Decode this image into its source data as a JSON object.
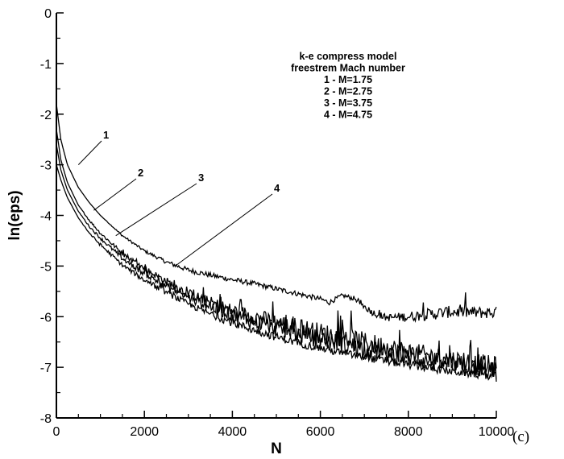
{
  "chart_data": {
    "type": "line",
    "xlabel": "N",
    "ylabel": "ln(eps)",
    "xlim": [
      0,
      10000
    ],
    "ylim": [
      -8,
      0
    ],
    "x_ticks": [
      0,
      2000,
      4000,
      6000,
      8000,
      10000
    ],
    "x_tick_labels": [
      "0",
      "2000",
      "4000",
      "6000",
      "8000",
      "10000"
    ],
    "y_ticks": [
      0,
      -1,
      -2,
      -3,
      -4,
      -5,
      -6,
      -7,
      -8
    ],
    "y_tick_labels": [
      "0",
      "-1",
      "-2",
      "-3",
      "-4",
      "-5",
      "-6",
      "-7",
      "-8"
    ],
    "grid": false,
    "legend_lines": [
      "k-e compress model",
      "freestrem Mach number",
      "1 - M=1.75",
      "2 - M=2.75",
      "3 - M=3.75",
      "4 - M=4.75"
    ],
    "panel_label": "(c)",
    "series": [
      {
        "label": "1",
        "x": [
          0,
          100,
          250,
          500,
          750,
          1000,
          1500,
          2000,
          2500,
          3000,
          3500,
          4000,
          4500,
          5000,
          5500,
          6000,
          6200,
          6500,
          6800,
          7000,
          7200,
          7500,
          8000,
          8500,
          9000,
          9500,
          10000
        ],
        "y": [
          -1.8,
          -2.5,
          -3.0,
          -3.45,
          -3.75,
          -4.0,
          -4.4,
          -4.7,
          -4.92,
          -5.08,
          -5.18,
          -5.27,
          -5.35,
          -5.45,
          -5.55,
          -5.65,
          -5.72,
          -5.58,
          -5.65,
          -5.8,
          -5.92,
          -6.02,
          -6.0,
          -5.95,
          -5.9,
          -5.92,
          -5.92
        ],
        "noise": [
          0,
          0,
          0,
          0,
          0,
          0,
          0.02,
          0.03,
          0.04,
          0.05,
          0.05,
          0.05,
          0.05,
          0.05,
          0.05,
          0.05,
          0.05,
          0.04,
          0.05,
          0.06,
          0.07,
          0.07,
          0.1,
          0.12,
          0.12,
          0.12,
          0.12
        ]
      },
      {
        "label": "2",
        "x": [
          0,
          100,
          250,
          500,
          750,
          1000,
          1500,
          2000,
          2500,
          3000,
          3500,
          4000,
          4500,
          5000,
          5500,
          6000,
          6500,
          7000,
          7500,
          8000,
          8500,
          9000,
          9500,
          10000
        ],
        "y": [
          -2.3,
          -2.9,
          -3.35,
          -3.8,
          -4.1,
          -4.35,
          -4.75,
          -5.05,
          -5.3,
          -5.55,
          -5.72,
          -5.88,
          -6.0,
          -6.12,
          -6.22,
          -6.32,
          -6.4,
          -6.5,
          -6.6,
          -6.7,
          -6.78,
          -6.85,
          -6.92,
          -7.0
        ],
        "noise": [
          0,
          0,
          0,
          0,
          0.02,
          0.03,
          0.05,
          0.06,
          0.08,
          0.1,
          0.12,
          0.14,
          0.16,
          0.18,
          0.2,
          0.2,
          0.2,
          0.2,
          0.2,
          0.2,
          0.2,
          0.2,
          0.2,
          0.22
        ]
      },
      {
        "label": "3",
        "x": [
          0,
          100,
          250,
          500,
          750,
          1000,
          1500,
          2000,
          2500,
          3000,
          3500,
          4000,
          4500,
          5000,
          5500,
          6000,
          6500,
          7000,
          7500,
          8000,
          8500,
          9000,
          9500,
          10000
        ],
        "y": [
          -2.6,
          -3.1,
          -3.5,
          -3.92,
          -4.22,
          -4.45,
          -4.85,
          -5.15,
          -5.4,
          -5.62,
          -5.8,
          -5.96,
          -6.1,
          -6.22,
          -6.34,
          -6.44,
          -6.54,
          -6.62,
          -6.72,
          -6.8,
          -6.88,
          -6.95,
          -7.02,
          -7.1
        ],
        "noise": [
          0,
          0,
          0,
          0,
          0.02,
          0.03,
          0.05,
          0.06,
          0.08,
          0.1,
          0.12,
          0.14,
          0.16,
          0.17,
          0.18,
          0.18,
          0.18,
          0.18,
          0.18,
          0.18,
          0.18,
          0.18,
          0.18,
          0.2
        ]
      },
      {
        "label": "4",
        "x": [
          0,
          100,
          250,
          500,
          750,
          1000,
          1500,
          2000,
          2500,
          3000,
          3500,
          4000,
          4500,
          5000,
          5500,
          6000,
          6500,
          7000,
          7500,
          8000,
          8500,
          9000,
          9500,
          10000
        ],
        "y": [
          -3.0,
          -3.3,
          -3.65,
          -4.05,
          -4.35,
          -4.58,
          -4.98,
          -5.28,
          -5.52,
          -5.75,
          -5.95,
          -6.12,
          -6.27,
          -6.4,
          -6.52,
          -6.62,
          -6.72,
          -6.8,
          -6.88,
          -6.95,
          -7.02,
          -7.08,
          -7.13,
          -7.18
        ],
        "noise": [
          0,
          0,
          0,
          0,
          0.02,
          0.03,
          0.04,
          0.05,
          0.06,
          0.06,
          0.07,
          0.08,
          0.08,
          0.08,
          0.08,
          0.08,
          0.08,
          0.08,
          0.08,
          0.08,
          0.08,
          0.08,
          0.08,
          0.08
        ]
      }
    ],
    "series_labels": [
      {
        "text": "1",
        "at_x": 500,
        "at_y": -3.0
      },
      {
        "text": "2",
        "at_x": 850,
        "at_y": -3.9
      },
      {
        "text": "3",
        "at_x": 1350,
        "at_y": -4.4
      },
      {
        "text": "4",
        "at_x": 2700,
        "at_y": -5.0
      }
    ]
  }
}
